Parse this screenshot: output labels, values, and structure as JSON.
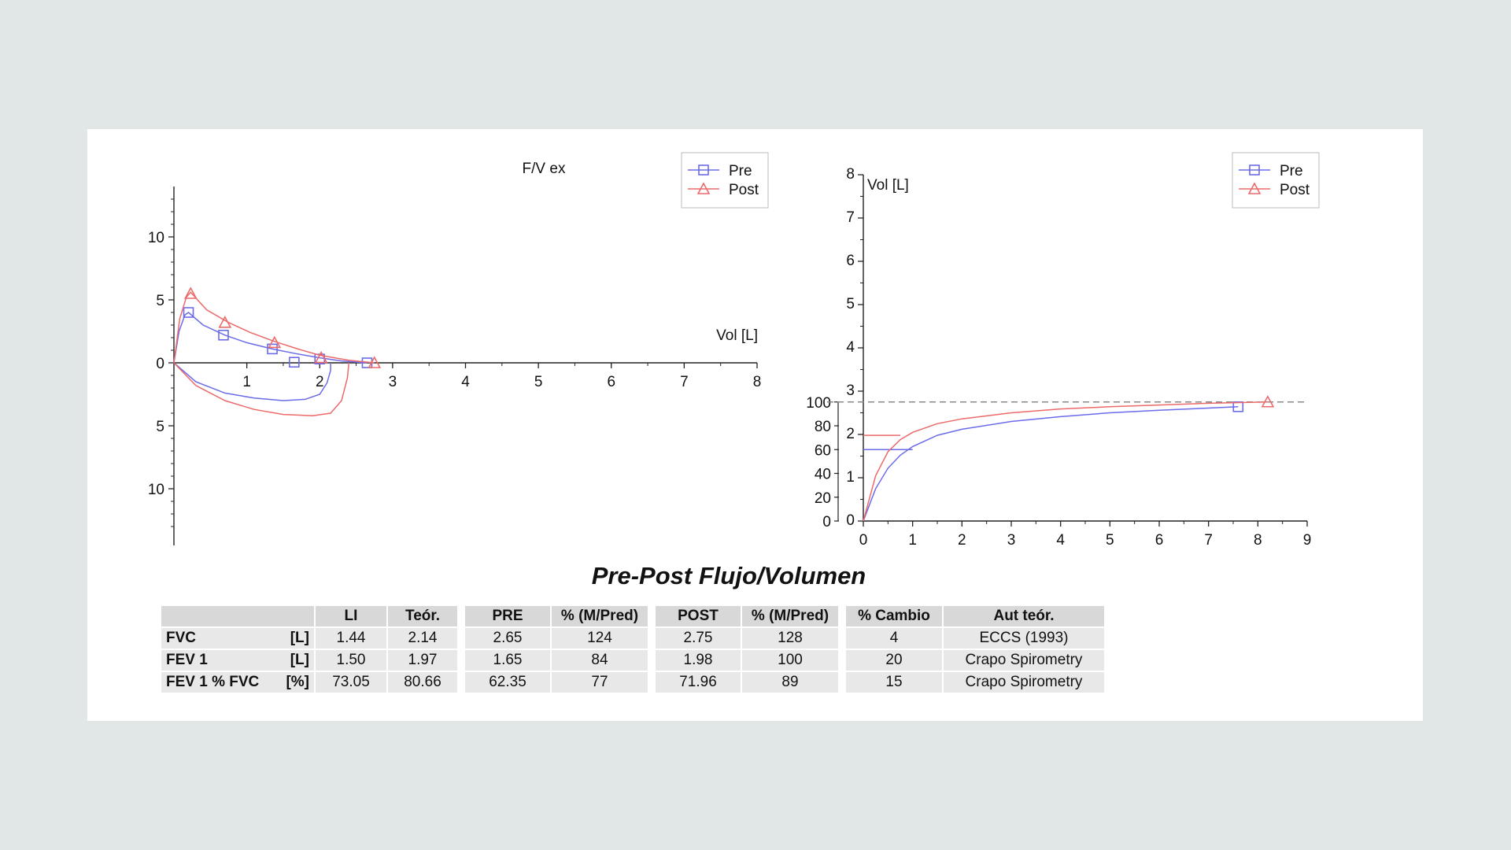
{
  "report": {
    "title": "Pre-Post Flujo/Volumen",
    "accent_colors": {
      "pre": "#6b6bea",
      "post": "#ec6a6a",
      "reference_line": "#888888"
    }
  },
  "chart_data": [
    {
      "type": "line",
      "title": "F/V ex",
      "xlabel": "Vol [L]",
      "ylabel": "",
      "xlim": [
        0,
        8
      ],
      "ylim": [
        -14,
        14
      ],
      "x_ticks": [
        1,
        2,
        3,
        4,
        5,
        6,
        7,
        8
      ],
      "y_ticks": [
        10,
        5,
        0,
        -5,
        -10
      ],
      "y_tick_labels": [
        "10",
        "5",
        "0",
        "5",
        "10"
      ],
      "legend": "top-right",
      "grid": false,
      "series": [
        {
          "name": "Pre",
          "color": "#6b6bea",
          "marker": "square",
          "expiratory": {
            "x": [
              0,
              0.07,
              0.15,
              0.2,
              0.4,
              0.7,
              1.0,
              1.35,
              1.7,
              2.0,
              2.3,
              2.6,
              2.65
            ],
            "y": [
              0,
              2.5,
              3.8,
              4.0,
              3.0,
              2.2,
              1.6,
              1.1,
              0.7,
              0.4,
              0.15,
              0.02,
              0
            ]
          },
          "inspiratory": {
            "x": [
              0,
              0.3,
              0.7,
              1.1,
              1.5,
              1.8,
              2.0,
              2.1,
              2.15,
              2.15
            ],
            "y": [
              0,
              -1.5,
              -2.4,
              -2.8,
              -3.0,
              -2.9,
              -2.5,
              -1.6,
              -0.6,
              0
            ]
          },
          "markers": {
            "x": [
              0.2,
              0.68,
              1.35,
              1.65,
              2.0,
              2.65
            ],
            "y": [
              4.0,
              2.2,
              1.1,
              0.05,
              0.3,
              0
            ]
          }
        },
        {
          "name": "Post",
          "color": "#ec6a6a",
          "marker": "triangle",
          "expiratory": {
            "x": [
              0,
              0.08,
              0.17,
              0.23,
              0.45,
              0.75,
              1.05,
              1.38,
              1.7,
              2.0,
              2.4,
              2.75
            ],
            "y": [
              0,
              3.5,
              5.2,
              5.6,
              4.2,
              3.2,
              2.4,
              1.7,
              1.1,
              0.6,
              0.2,
              0
            ]
          },
          "inspiratory": {
            "x": [
              0,
              0.3,
              0.7,
              1.1,
              1.5,
              1.9,
              2.15,
              2.3,
              2.38,
              2.4
            ],
            "y": [
              0,
              -1.8,
              -3.0,
              -3.7,
              -4.1,
              -4.2,
              -4.0,
              -3.0,
              -1.2,
              0
            ]
          },
          "markers": {
            "x": [
              0.23,
              0.7,
              1.38,
              2.02,
              2.75
            ],
            "y": [
              5.5,
              3.2,
              1.6,
              0.4,
              0
            ]
          }
        }
      ]
    },
    {
      "type": "line",
      "title": "",
      "xlabel": "",
      "ylabel": "Vol [L]",
      "xlim": [
        0,
        9
      ],
      "ylim": [
        0,
        8
      ],
      "x_ticks": [
        0,
        1,
        2,
        3,
        4,
        5,
        6,
        7,
        8,
        9
      ],
      "y_ticks": [
        0,
        1,
        2,
        3,
        4,
        5,
        6,
        7,
        8
      ],
      "secondary_y_ticks": [
        0,
        20,
        40,
        60,
        80,
        100
      ],
      "reference_line_y": 2.75,
      "legend": "top-right",
      "grid": false,
      "series": [
        {
          "name": "Pre",
          "color": "#6b6bea",
          "marker": "square",
          "x": [
            0,
            0.25,
            0.5,
            0.75,
            1.0,
            1.5,
            2,
            3,
            4,
            5,
            6,
            7,
            7.6
          ],
          "y": [
            0,
            0.75,
            1.22,
            1.52,
            1.72,
            1.98,
            2.12,
            2.3,
            2.41,
            2.5,
            2.56,
            2.61,
            2.64
          ],
          "pre_level": {
            "y": 1.65,
            "x_end": 1.0
          },
          "end_marker": {
            "x": 7.6,
            "y": 2.64
          }
        },
        {
          "name": "Post",
          "color": "#ec6a6a",
          "marker": "triangle",
          "x": [
            0,
            0.25,
            0.5,
            0.75,
            1.0,
            1.5,
            2,
            3,
            4,
            5,
            6,
            7,
            8.2
          ],
          "y": [
            0,
            1.05,
            1.6,
            1.88,
            2.05,
            2.25,
            2.36,
            2.5,
            2.59,
            2.64,
            2.68,
            2.72,
            2.75
          ],
          "pre_level": {
            "y": 1.98,
            "x_end": 0.75
          },
          "end_marker": {
            "x": 8.2,
            "y": 2.75
          }
        }
      ]
    }
  ],
  "table": {
    "headers": {
      "li": "LI",
      "teor": "Teór.",
      "pre": "PRE",
      "pre_pct": "% (M/Pred)",
      "post": "POST",
      "post_pct": "% (M/Pred)",
      "change": "% Cambio",
      "aut": "Aut teór."
    },
    "rows": [
      {
        "param": "FVC",
        "unit": "[L]",
        "li": "1.44",
        "teor": "2.14",
        "pre": "2.65",
        "pre_pct": "124",
        "post": "2.75",
        "post_pct": "128",
        "change": "4",
        "aut": "ECCS (1993)"
      },
      {
        "param": "FEV 1",
        "unit": "[L]",
        "li": "1.50",
        "teor": "1.97",
        "pre": "1.65",
        "pre_pct": "84",
        "post": "1.98",
        "post_pct": "100",
        "change": "20",
        "aut": "Crapo Spirometry"
      },
      {
        "param": "FEV 1 % FVC",
        "unit": "[%]",
        "li": "73.05",
        "teor": "80.66",
        "pre": "62.35",
        "pre_pct": "77",
        "post": "71.96",
        "post_pct": "89",
        "change": "15",
        "aut": "Crapo Spirometry"
      }
    ]
  }
}
